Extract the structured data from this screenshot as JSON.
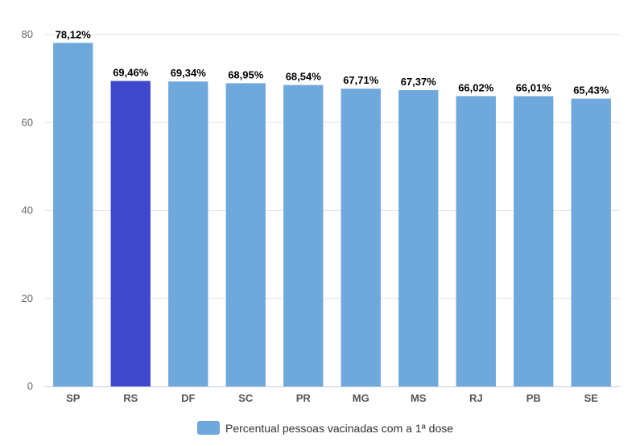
{
  "chart_data": {
    "type": "bar",
    "categories": [
      "SP",
      "RS",
      "DF",
      "SC",
      "PR",
      "MG",
      "MS",
      "RJ",
      "PB",
      "SE"
    ],
    "series": [
      {
        "name": "Percentual pessoas vacinadas com a 1ª dose",
        "values": [
          78.12,
          69.46,
          69.34,
          68.95,
          68.54,
          67.71,
          67.37,
          66.02,
          66.01,
          65.43
        ],
        "data_labels": [
          "78,12%",
          "69,46%",
          "69,34%",
          "68,95%",
          "68,54%",
          "67,71%",
          "67,37%",
          "66,02%",
          "66,01%",
          "65,43%"
        ]
      }
    ],
    "highlighted_category": "RS",
    "ylim": [
      0,
      80
    ],
    "yticks": [
      0,
      20,
      40,
      60,
      80
    ],
    "grid": true,
    "legend_position": "bottom-center",
    "colors": {
      "bar": "#6FA8DC",
      "highlight": "#3F48CC",
      "grid": "#E6E6E6",
      "axis": "#C0D0E0"
    }
  }
}
